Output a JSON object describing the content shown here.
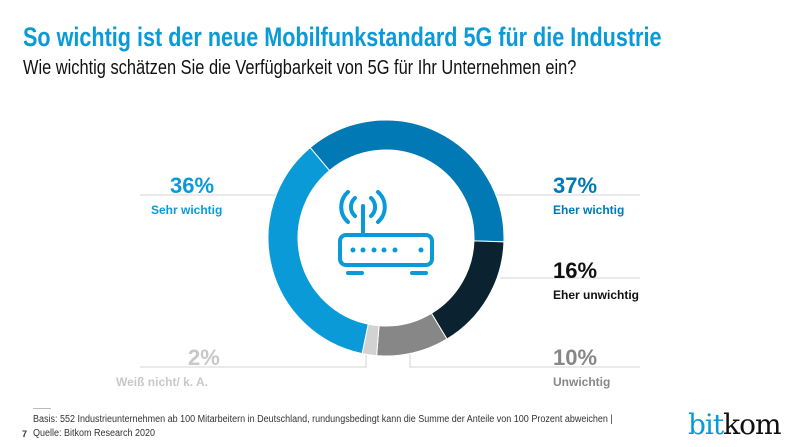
{
  "header": {
    "title": "So wichtig ist der neue Mobilfunkstandard 5G für die Industrie",
    "subtitle": "Wie wichtig schätzen Sie die Verfügbarkeit von 5G für Ihr Unternehmen ein?"
  },
  "chart_data": {
    "type": "pie",
    "donut": true,
    "center_icon": "wifi-router-icon",
    "slices": [
      {
        "label": "Eher wichtig",
        "value": 37,
        "display": "37%",
        "color": "#0079b4"
      },
      {
        "label": "Eher unwichtig",
        "value": 16,
        "display": "16%",
        "color": "#0b2230"
      },
      {
        "label": "Unwichtig",
        "value": 10,
        "display": "10%",
        "color": "#878787"
      },
      {
        "label": "Weiß nicht/ k. A.",
        "value": 2,
        "display": "2%",
        "color": "#d2d2d2"
      },
      {
        "label": "Sehr wichtig",
        "value": 36,
        "display": "36%",
        "color": "#0b9ad8"
      }
    ]
  },
  "footer": {
    "page": "7",
    "basis": "Basis: 552 Industrieunternehmen ab 100 Mitarbeitern in Deutschland, rundungsbedingt kann die Summe der Anteile von 100 Prozent abweichen |",
    "source": "Quelle: Bitkom Research 2020",
    "logo_text": "bitkom",
    "logo_part1": "bit",
    "logo_part2": "kom"
  }
}
